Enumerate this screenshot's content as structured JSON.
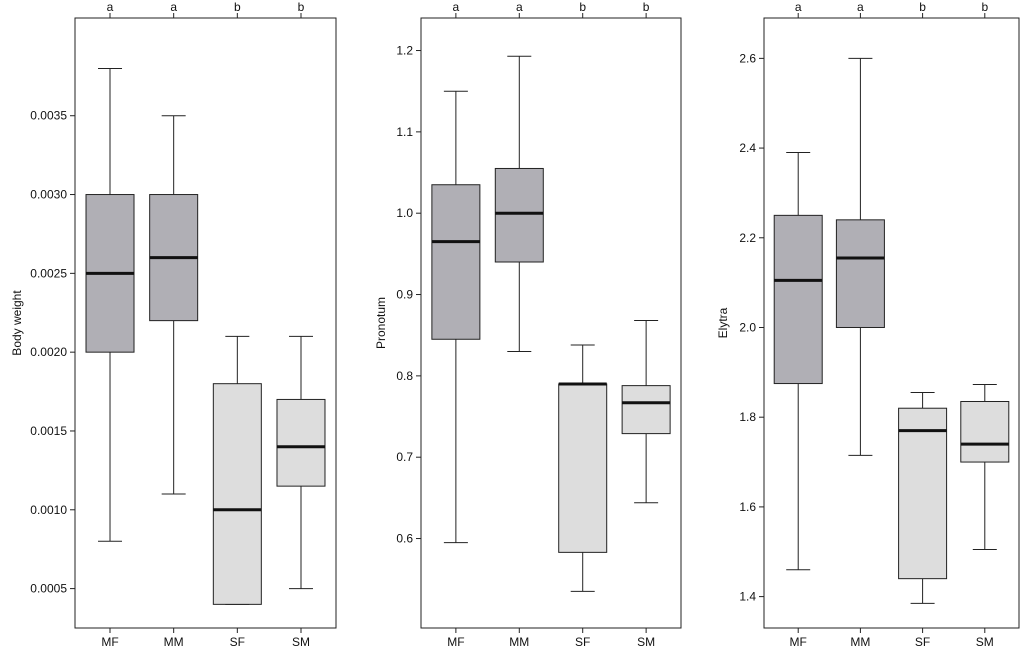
{
  "chart_data": [
    {
      "type": "boxplot",
      "ylabel": "Body weight",
      "categories": [
        "MF",
        "MM",
        "SF",
        "SM"
      ],
      "letters": [
        "a",
        "a",
        "b",
        "b"
      ],
      "ylim": [
        0.00025,
        0.00412
      ],
      "yticks": [
        0.0005,
        0.001,
        0.0015,
        0.002,
        0.0025,
        0.003,
        0.0035
      ],
      "ytick_labels": [
        "0.0005",
        "0.0010",
        "0.0015",
        "0.0020",
        "0.0025",
        "0.0030",
        "0.0035"
      ],
      "boxes": [
        {
          "min": 0.0008,
          "q1": 0.002,
          "median": 0.0025,
          "q3": 0.003,
          "max": 0.0038
        },
        {
          "min": 0.0011,
          "q1": 0.0022,
          "median": 0.0026,
          "q3": 0.003,
          "max": 0.0035
        },
        {
          "min": 0.0004,
          "q1": 0.0004,
          "median": 0.001,
          "q3": 0.0018,
          "max": 0.0021
        },
        {
          "min": 0.0005,
          "q1": 0.00115,
          "median": 0.0014,
          "q3": 0.0017,
          "max": 0.0021
        }
      ],
      "fills": [
        "#b0afb5",
        "#b0afb5",
        "#dddddd",
        "#dddddd"
      ]
    },
    {
      "type": "boxplot",
      "ylabel": "Pronotum",
      "categories": [
        "MF",
        "MM",
        "SF",
        "SM"
      ],
      "letters": [
        "a",
        "a",
        "b",
        "b"
      ],
      "ylim": [
        0.49,
        1.24
      ],
      "yticks": [
        0.6,
        0.7,
        0.8,
        0.9,
        1.0,
        1.1,
        1.2
      ],
      "ytick_labels": [
        "0.6",
        "0.7",
        "0.8",
        "0.9",
        "1.0",
        "1.1",
        "1.2"
      ],
      "boxes": [
        {
          "min": 0.595,
          "q1": 0.845,
          "median": 0.965,
          "q3": 1.035,
          "max": 1.15
        },
        {
          "min": 0.83,
          "q1": 0.94,
          "median": 1.0,
          "q3": 1.055,
          "max": 1.193
        },
        {
          "min": 0.535,
          "q1": 0.583,
          "median": 0.79,
          "q3": 0.79,
          "max": 0.838
        },
        {
          "min": 0.644,
          "q1": 0.729,
          "median": 0.767,
          "q3": 0.788,
          "max": 0.868
        }
      ],
      "fills": [
        "#b0afb5",
        "#b0afb5",
        "#dddddd",
        "#dddddd"
      ]
    },
    {
      "type": "boxplot",
      "ylabel": "Elytra",
      "categories": [
        "MF",
        "MM",
        "SF",
        "SM"
      ],
      "letters": [
        "a",
        "a",
        "b",
        "b"
      ],
      "ylim": [
        1.33,
        2.69
      ],
      "yticks": [
        1.4,
        1.6,
        1.8,
        2.0,
        2.2,
        2.4,
        2.6
      ],
      "ytick_labels": [
        "1.4",
        "1.6",
        "1.8",
        "2.0",
        "2.2",
        "2.4",
        "2.6"
      ],
      "boxes": [
        {
          "min": 1.46,
          "q1": 1.875,
          "median": 2.105,
          "q3": 2.25,
          "max": 2.39
        },
        {
          "min": 1.715,
          "q1": 2.0,
          "median": 2.155,
          "q3": 2.24,
          "max": 2.6
        },
        {
          "min": 1.385,
          "q1": 1.44,
          "median": 1.77,
          "q3": 1.82,
          "max": 1.855
        },
        {
          "min": 1.505,
          "q1": 1.7,
          "median": 1.74,
          "q3": 1.835,
          "max": 1.873
        }
      ],
      "fills": [
        "#b0afb5",
        "#b0afb5",
        "#dddddd",
        "#dddddd"
      ]
    }
  ]
}
